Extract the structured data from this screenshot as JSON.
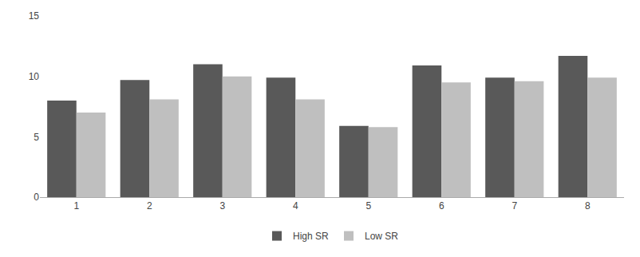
{
  "chart_data": {
    "type": "bar",
    "categories": [
      1,
      2,
      3,
      4,
      5,
      6,
      7,
      8
    ],
    "series": [
      {
        "name": "High SR",
        "color": "#595959",
        "values": [
          8.0,
          9.7,
          11.0,
          9.9,
          5.9,
          10.9,
          9.9,
          11.7
        ]
      },
      {
        "name": "Low SR",
        "color": "#bfbfbf",
        "values": [
          7.0,
          8.1,
          10.0,
          8.1,
          5.8,
          9.5,
          9.6,
          9.9
        ]
      }
    ],
    "ylim": [
      0,
      15
    ],
    "yticks": [
      0,
      5,
      10,
      15
    ],
    "grid": false,
    "legend": "bottom"
  }
}
